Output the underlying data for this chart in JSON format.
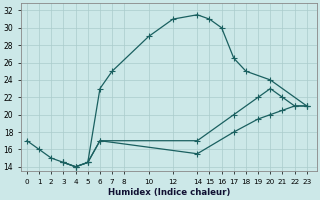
{
  "xlabel": "Humidex (Indice chaleur)",
  "bg_color": "#cce8e8",
  "grid_color": "#aacccc",
  "line_color": "#1a6060",
  "xlim": [
    -0.5,
    23.8
  ],
  "ylim": [
    13.5,
    32.8
  ],
  "xticks": [
    0,
    1,
    2,
    3,
    4,
    5,
    6,
    7,
    8,
    10,
    12,
    14,
    15,
    16,
    17,
    18,
    19,
    20,
    21,
    22,
    23
  ],
  "yticks": [
    14,
    16,
    18,
    20,
    22,
    24,
    26,
    28,
    30,
    32
  ],
  "curve1_x": [
    0,
    1,
    2,
    3,
    4,
    5,
    6,
    7,
    10,
    12,
    14,
    15,
    16,
    17,
    18,
    20,
    23
  ],
  "curve1_y": [
    17,
    16,
    15,
    14.5,
    14,
    14.5,
    23,
    25,
    29,
    31,
    31.5,
    31,
    30,
    26.5,
    25,
    24,
    21
  ],
  "curve2_x": [
    3,
    4,
    5,
    6,
    14,
    17,
    19,
    20,
    21,
    22,
    23
  ],
  "curve2_y": [
    14.5,
    14,
    14.5,
    17,
    17,
    20,
    22,
    23,
    22,
    21,
    21
  ],
  "curve3_x": [
    3,
    4,
    5,
    6,
    14,
    17,
    19,
    20,
    21,
    22,
    23
  ],
  "curve3_y": [
    14.5,
    14,
    14.5,
    17,
    15.5,
    18,
    19.5,
    20,
    20.5,
    21,
    21
  ]
}
